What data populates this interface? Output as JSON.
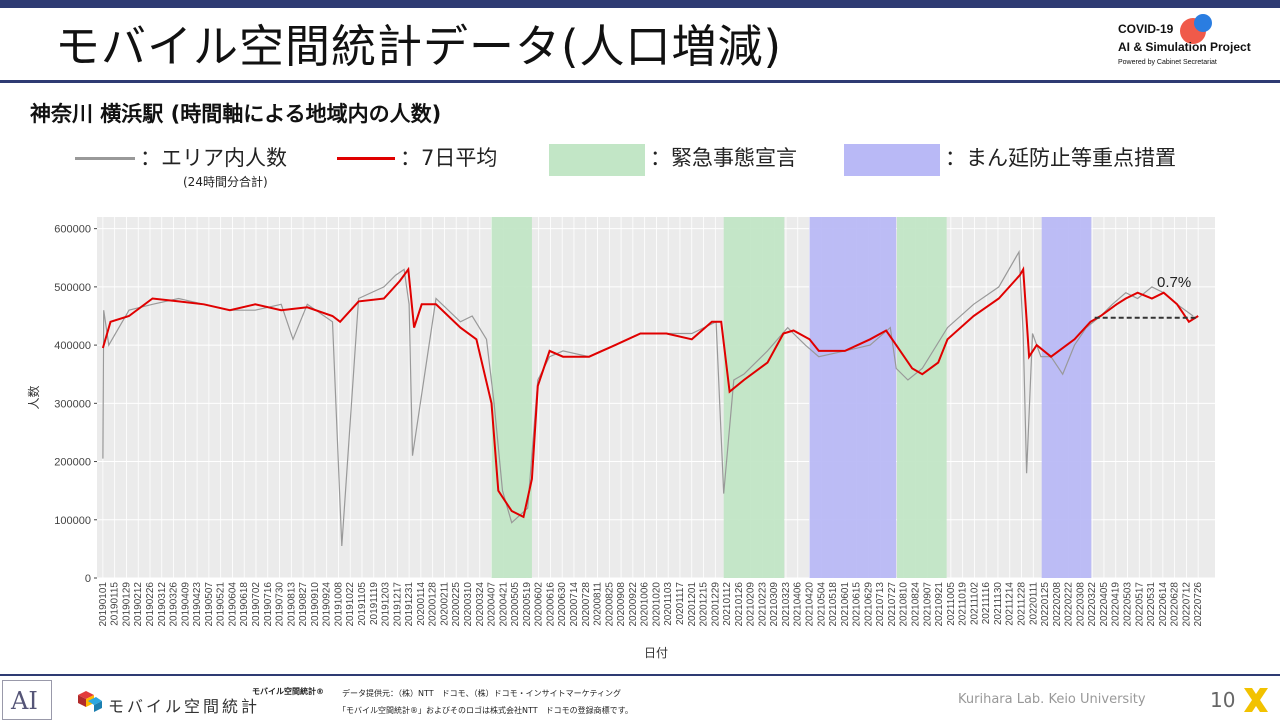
{
  "header": {
    "title": "モバイル空間統計データ(人口増減)",
    "logo_line1": "COVID-19",
    "logo_line2": "AI & Simulation Project",
    "logo_line3": "Powered by Cabinet Secretariat",
    "colors": {
      "bar": "#2e3b73",
      "logo_red": "#f05a4a",
      "logo_blue": "#2a7de1"
    }
  },
  "subtitle": "神奈川 横浜駅 (時間軸による地域内の人数)",
  "legend": {
    "area_people": "：エリア内人数",
    "area_note": "(24時間分合計)",
    "avg7": "：7日平均",
    "emergency": "：緊急事態宣言",
    "semi_emergency": "：まん延防止等重点措置"
  },
  "chart_data": {
    "type": "line",
    "xlabel": "日付",
    "ylabel": "人数",
    "ylim": [
      0,
      620000
    ],
    "yticks": [
      0,
      100000,
      200000,
      300000,
      400000,
      500000,
      600000
    ],
    "grid": true,
    "xticks": [
      "20190101",
      "20190115",
      "20190129",
      "20190212",
      "20190226",
      "20190312",
      "20190326",
      "20190409",
      "20190423",
      "20190507",
      "20190521",
      "20190604",
      "20190618",
      "20190702",
      "20190716",
      "20190730",
      "20190813",
      "20190827",
      "20190910",
      "20190924",
      "20191008",
      "20191022",
      "20191105",
      "20191119",
      "20191203",
      "20191217",
      "20191231",
      "20200114",
      "20200128",
      "20200211",
      "20200225",
      "20200310",
      "20200324",
      "20200407",
      "20200421",
      "20200505",
      "20200519",
      "20200602",
      "20200616",
      "20200630",
      "20200714",
      "20200728",
      "20200811",
      "20200825",
      "20200908",
      "20200922",
      "20201006",
      "20201020",
      "20201103",
      "20201117",
      "20201201",
      "20201215",
      "20201229",
      "20210112",
      "20210126",
      "20210209",
      "20210223",
      "20210309",
      "20210323",
      "20210406",
      "20210420",
      "20210504",
      "20210518",
      "20210601",
      "20210615",
      "20210629",
      "20210713",
      "20210727",
      "20210810",
      "20210824",
      "20210907",
      "20210921",
      "20211005",
      "20211019",
      "20211102",
      "20211116",
      "20211130",
      "20211214",
      "20211228",
      "20220111",
      "20220125",
      "20220208",
      "20220222",
      "20220308",
      "20220322",
      "20220405",
      "20220419",
      "20220503",
      "20220517",
      "20220531",
      "20220614",
      "20220628",
      "20220712",
      "20220726"
    ],
    "periods": [
      {
        "kind": "emergency",
        "start": "20200407",
        "end": "20200525",
        "color": "#c2e6c6"
      },
      {
        "kind": "emergency",
        "start": "20210108",
        "end": "20210321",
        "color": "#c2e6c6"
      },
      {
        "kind": "semi_emergency",
        "start": "20210420",
        "end": "20210801",
        "color": "#b9b9f6"
      },
      {
        "kind": "emergency",
        "start": "20210802",
        "end": "20210930",
        "color": "#c2e6c6"
      },
      {
        "kind": "semi_emergency",
        "start": "20220121",
        "end": "20220321",
        "color": "#b9b9f6"
      }
    ],
    "series": [
      {
        "name": "エリア内人数",
        "color": "#999999",
        "x": [
          "20190101",
          "20190102",
          "20190108",
          "20190201",
          "20190301",
          "20190401",
          "20190501",
          "20190601",
          "20190701",
          "20190801",
          "20190815",
          "20190901",
          "20191001",
          "20191012",
          "20191101",
          "20191201",
          "20191215",
          "20191225",
          "20191231",
          "20200104",
          "20200201",
          "20200301",
          "20200315",
          "20200401",
          "20200410",
          "20200420",
          "20200501",
          "20200520",
          "20200601",
          "20200615",
          "20200701",
          "20200801",
          "20200815",
          "20200901",
          "20201001",
          "20201101",
          "20201201",
          "20201230",
          "20210108",
          "20210120",
          "20210201",
          "20210301",
          "20210325",
          "20210401",
          "20210415",
          "20210501",
          "20210601",
          "20210701",
          "20210725",
          "20210801",
          "20210815",
          "20210901",
          "20211001",
          "20211101",
          "20211201",
          "20211225",
          "20211230",
          "20220103",
          "20220110",
          "20220120",
          "20220201",
          "20220215",
          "20220301",
          "20220315",
          "20220401",
          "20220415",
          "20220501",
          "20220515",
          "20220601",
          "20220615",
          "20220701",
          "20220720"
        ],
        "values": [
          205000,
          460000,
          400000,
          460000,
          470000,
          480000,
          470000,
          460000,
          460000,
          470000,
          410000,
          470000,
          440000,
          55000,
          480000,
          500000,
          520000,
          530000,
          470000,
          210000,
          480000,
          440000,
          450000,
          410000,
          300000,
          150000,
          95000,
          120000,
          340000,
          380000,
          390000,
          380000,
          390000,
          400000,
          420000,
          420000,
          420000,
          440000,
          145000,
          340000,
          350000,
          390000,
          430000,
          420000,
          400000,
          380000,
          390000,
          400000,
          430000,
          360000,
          340000,
          360000,
          430000,
          470000,
          500000,
          560000,
          420000,
          180000,
          420000,
          380000,
          380000,
          350000,
          400000,
          430000,
          450000,
          470000,
          490000,
          480000,
          500000,
          490000,
          470000,
          450000
        ]
      },
      {
        "name": "7日平均",
        "color": "#e00000",
        "x": [
          "20190101",
          "20190110",
          "20190201",
          "20190301",
          "20190401",
          "20190501",
          "20190601",
          "20190701",
          "20190801",
          "20190901",
          "20191001",
          "20191010",
          "20191101",
          "20191201",
          "20191220",
          "20191230",
          "20200106",
          "20200115",
          "20200201",
          "20200301",
          "20200320",
          "20200407",
          "20200415",
          "20200501",
          "20200515",
          "20200525",
          "20200601",
          "20200615",
          "20200701",
          "20200801",
          "20200901",
          "20201001",
          "20201101",
          "20201201",
          "20201225",
          "20210105",
          "20210115",
          "20210201",
          "20210301",
          "20210320",
          "20210401",
          "20210420",
          "20210501",
          "20210601",
          "20210701",
          "20210720",
          "20210801",
          "20210820",
          "20210901",
          "20210920",
          "20211001",
          "20211101",
          "20211201",
          "20211226",
          "20211230",
          "20220106",
          "20220115",
          "20220201",
          "20220301",
          "20220320",
          "20220401",
          "20220420",
          "20220501",
          "20220515",
          "20220601",
          "20220615",
          "20220701",
          "20220715",
          "20220726"
        ],
        "values": [
          395000,
          440000,
          450000,
          480000,
          475000,
          470000,
          460000,
          470000,
          460000,
          465000,
          450000,
          440000,
          475000,
          480000,
          510000,
          530000,
          430000,
          470000,
          470000,
          430000,
          410000,
          300000,
          150000,
          115000,
          105000,
          170000,
          330000,
          390000,
          380000,
          380000,
          400000,
          420000,
          420000,
          410000,
          440000,
          440000,
          320000,
          340000,
          370000,
          420000,
          425000,
          410000,
          390000,
          390000,
          410000,
          425000,
          400000,
          360000,
          350000,
          370000,
          410000,
          450000,
          480000,
          520000,
          530000,
          380000,
          400000,
          380000,
          410000,
          440000,
          450000,
          470000,
          480000,
          490000,
          480000,
          490000,
          470000,
          440000,
          450000
        ]
      },
      {
        "name": "forecast",
        "color": "#333333",
        "x": [
          "20220325",
          "20220726"
        ],
        "values": [
          447000,
          447000
        ]
      }
    ],
    "annotation": "0.7%"
  },
  "footer": {
    "brand": "モバイル空間統計",
    "credit_title": "モバイル空間統計®",
    "credit_line1": "データ提供元：（株）NTT　ドコモ、（株）ドコモ・インサイトマーケティング",
    "credit_line2": "「モバイル空間統計®」およびそのロゴは株式会社NTT　ドコモの登録商標です。",
    "lab": "Kurihara Lab. Keio University",
    "page": "10"
  }
}
